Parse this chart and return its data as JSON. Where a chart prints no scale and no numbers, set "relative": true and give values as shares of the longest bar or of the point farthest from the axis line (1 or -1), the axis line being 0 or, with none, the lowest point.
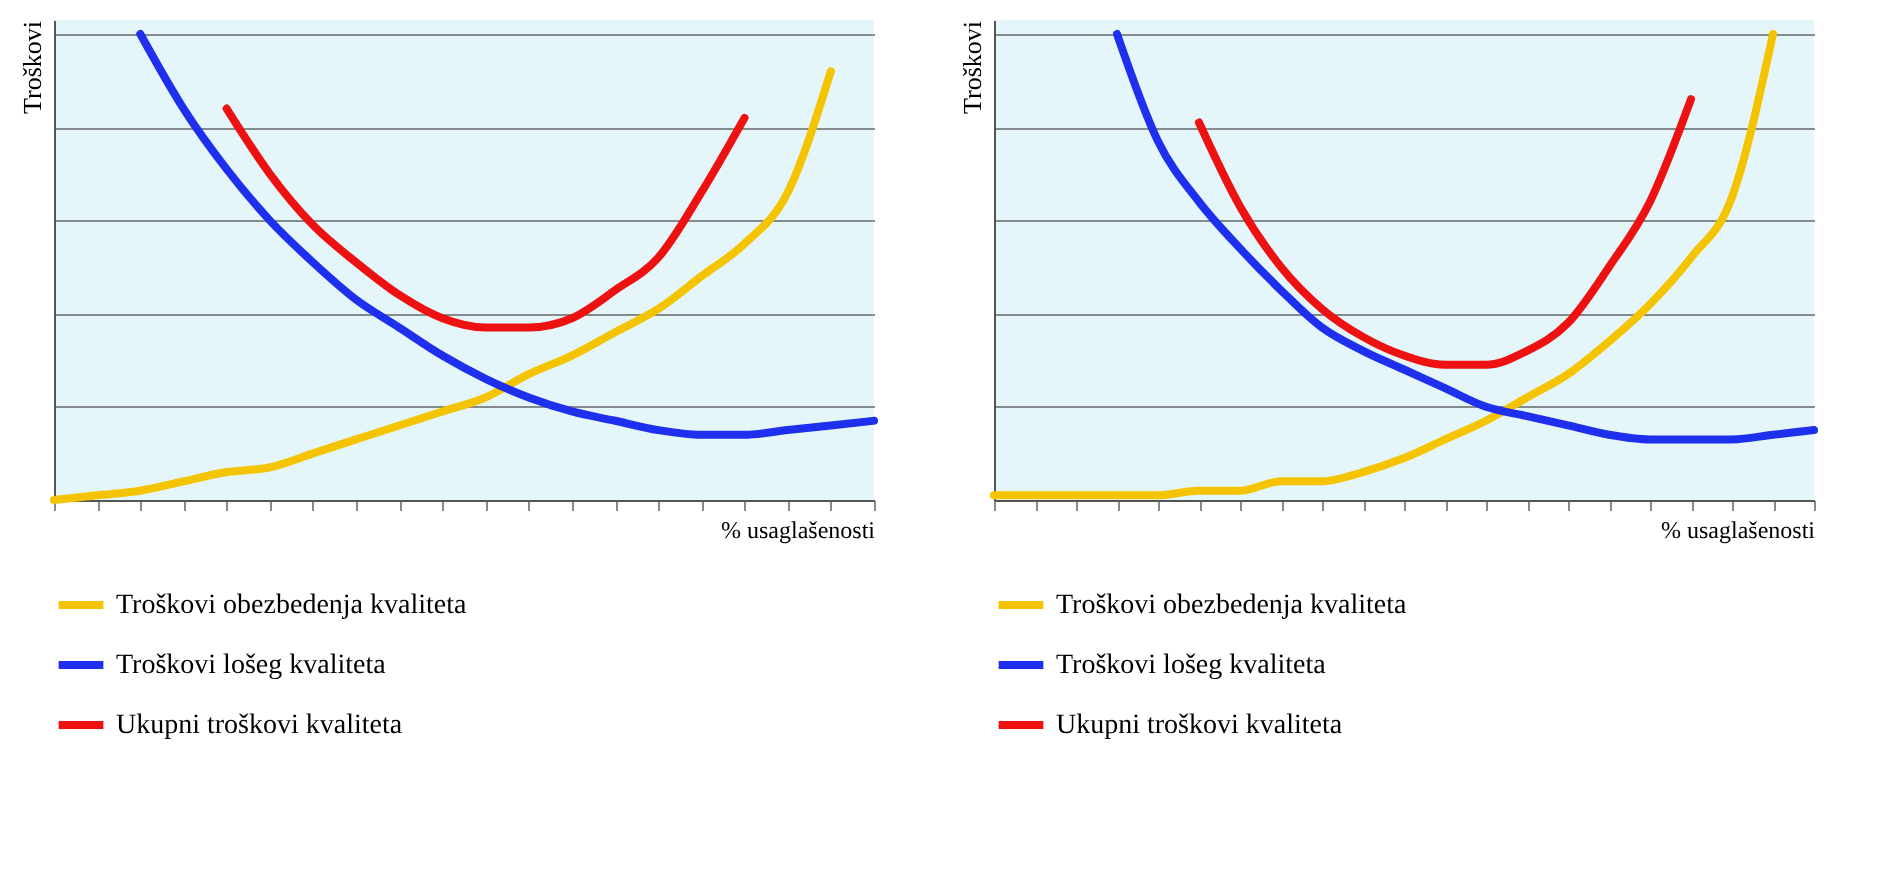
{
  "chart_data": [
    {
      "type": "line",
      "ylabel": "Troškovi",
      "xlabel": "% usaglašenosti",
      "relative": true,
      "grid": "y",
      "legend": "bottom",
      "categories": [
        null,
        null,
        null,
        null,
        null,
        null,
        null,
        null,
        null,
        null,
        null,
        null,
        null,
        null,
        null,
        null,
        null,
        null,
        null,
        null
      ],
      "series": [
        {
          "name": "Troškovi obezbedenja kvaliteta",
          "color": "#f5c400",
          "values": [
            0,
            0.01,
            0.02,
            0.04,
            0.06,
            0.07,
            0.1,
            0.13,
            0.16,
            0.19,
            0.22,
            0.27,
            0.31,
            0.36,
            0.41,
            0.48,
            0.55,
            0.66,
            0.92,
            null
          ]
        },
        {
          "name": "Troškovi lošeg kvaliteta",
          "color": "#1f2fee",
          "values": [
            null,
            null,
            1,
            0.84,
            0.71,
            0.6,
            0.51,
            0.43,
            0.37,
            0.31,
            0.26,
            0.22,
            0.19,
            0.17,
            0.15,
            0.14,
            0.14,
            0.15,
            0.16,
            0.17
          ]
        },
        {
          "name": "Ukupni troškovi kvaliteta",
          "color": "#ee1111",
          "values": [
            null,
            null,
            null,
            null,
            0.84,
            0.7,
            0.59,
            0.51,
            0.44,
            0.39,
            0.37,
            0.37,
            0.39,
            0.45,
            0.52,
            0.66,
            0.82,
            null,
            null,
            null
          ]
        }
      ]
    },
    {
      "type": "line",
      "ylabel": "Troškovi",
      "xlabel": "% usaglašenosti",
      "relative": true,
      "grid": "y",
      "legend": "bottom",
      "categories": [
        null,
        null,
        null,
        null,
        null,
        null,
        null,
        null,
        null,
        null,
        null,
        null,
        null,
        null,
        null,
        null,
        null,
        null,
        null,
        null,
        null
      ],
      "series": [
        {
          "name": "Troškovi obezbedenja kvaliteta",
          "color": "#f5c400",
          "values": [
            0.01,
            0.01,
            0.01,
            0.01,
            0.01,
            0.02,
            0.02,
            0.04,
            0.04,
            0.06,
            0.09,
            0.13,
            0.17,
            0.22,
            0.27,
            0.34,
            0.42,
            0.52,
            0.65,
            1,
            null
          ]
        },
        {
          "name": "Troškovi lošeg kvaliteta",
          "color": "#1f2fee",
          "values": [
            null,
            null,
            null,
            1,
            0.77,
            0.64,
            0.54,
            0.45,
            0.37,
            0.32,
            0.28,
            0.24,
            0.2,
            0.18,
            0.16,
            0.14,
            0.13,
            0.13,
            0.13,
            0.14,
            0.15
          ]
        },
        {
          "name": "Ukupni troškovi kvaliteta",
          "color": "#ee1111",
          "values": [
            null,
            null,
            null,
            null,
            null,
            0.81,
            0.63,
            0.5,
            0.41,
            0.35,
            0.31,
            0.29,
            0.29,
            0.32,
            0.38,
            0.5,
            0.64,
            0.86,
            null,
            null,
            null
          ]
        }
      ]
    }
  ]
}
